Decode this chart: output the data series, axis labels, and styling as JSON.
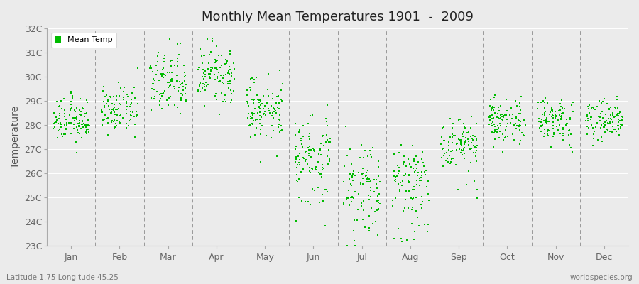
{
  "title": "Monthly Mean Temperatures 1901  -  2009",
  "ylabel": "Temperature",
  "subtitle": "Latitude 1.75 Longitude 45.25",
  "credit": "worldspecies.org",
  "legend_label": "Mean Temp",
  "dot_color": "#00BB00",
  "background_color": "#EBEBEB",
  "plot_bg_color": "#EBEBEB",
  "ytick_labels": [
    "23C",
    "24C",
    "25C",
    "26C",
    "27C",
    "28C",
    "29C",
    "30C",
    "31C",
    "32C"
  ],
  "ytick_values": [
    23,
    24,
    25,
    26,
    27,
    28,
    29,
    30,
    31,
    32
  ],
  "ylim": [
    23,
    32
  ],
  "months": [
    "Jan",
    "Feb",
    "Mar",
    "Apr",
    "May",
    "Jun",
    "Jul",
    "Aug",
    "Sep",
    "Oct",
    "Nov",
    "Dec"
  ],
  "month_means": [
    28.2,
    28.6,
    29.7,
    30.0,
    28.7,
    26.8,
    25.7,
    25.8,
    27.3,
    28.1,
    28.2,
    28.2
  ],
  "month_stds": [
    0.45,
    0.45,
    0.65,
    0.6,
    0.65,
    0.6,
    0.7,
    0.65,
    0.45,
    0.45,
    0.4,
    0.4
  ],
  "month_skew": [
    0.0,
    0.0,
    0.3,
    0.2,
    -0.2,
    -0.8,
    -1.2,
    -1.0,
    -0.3,
    0.0,
    0.0,
    0.0
  ],
  "n_years": 109,
  "seed": 12345,
  "dot_size": 4
}
